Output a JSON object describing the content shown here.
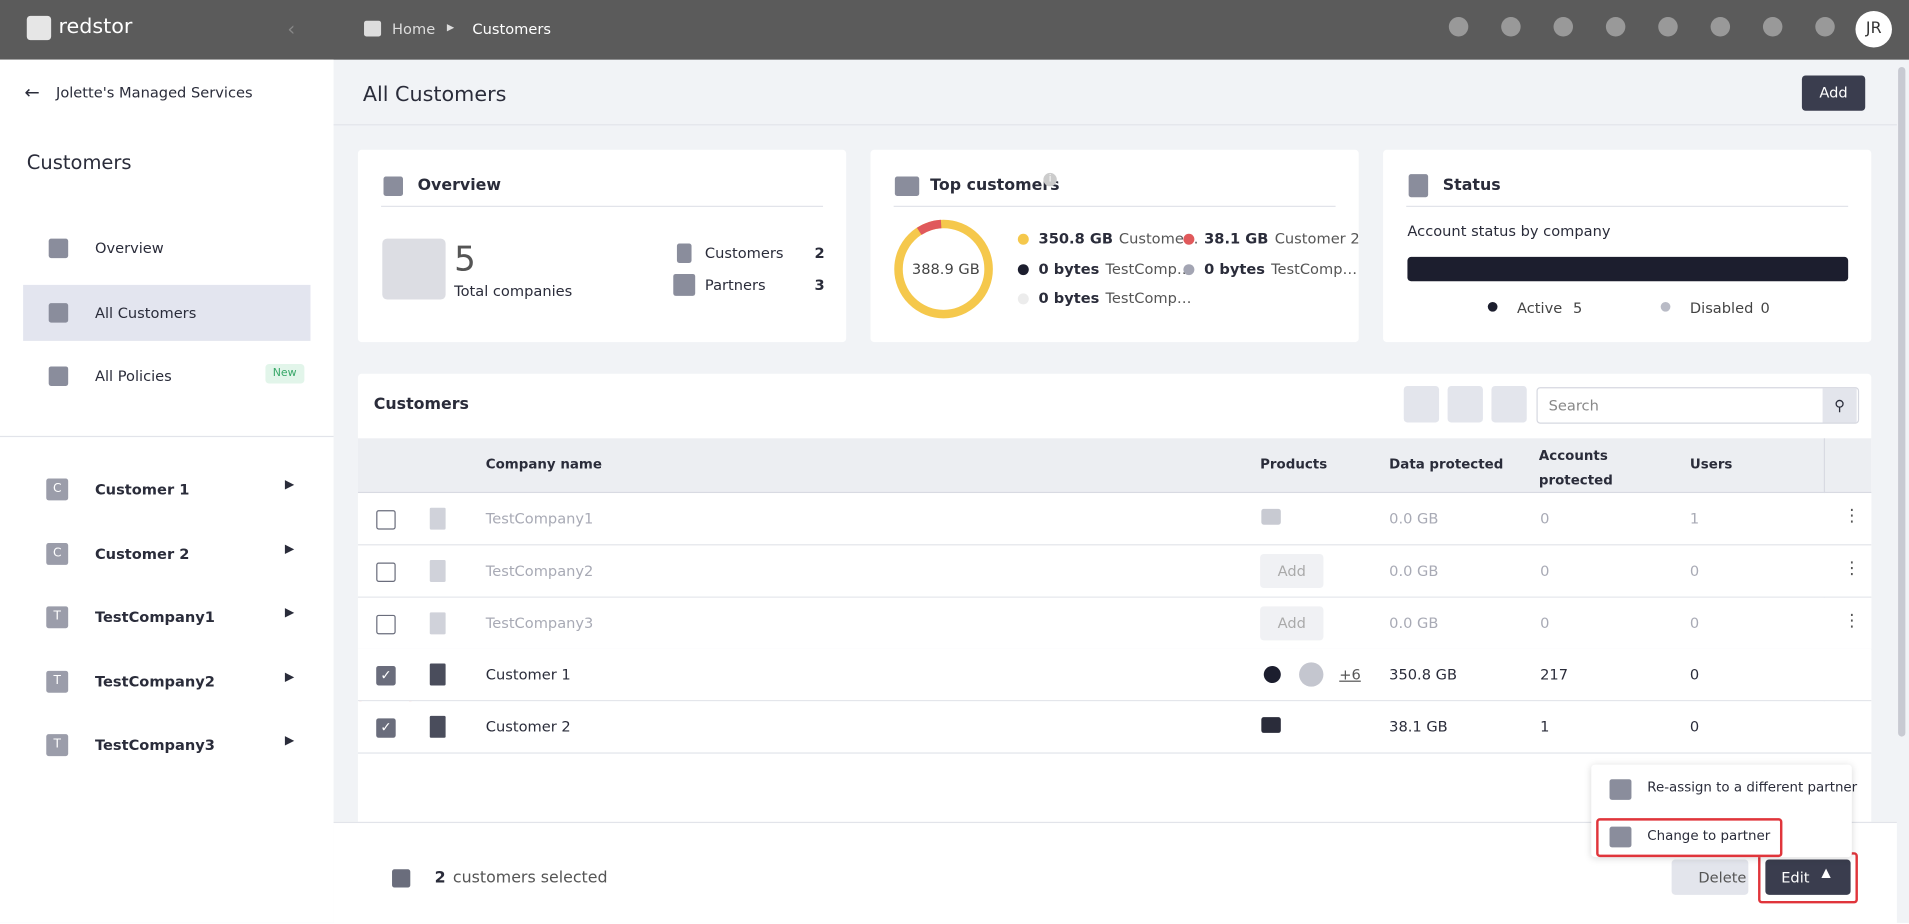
{
  "topbar": {
    "brand": "redstor",
    "breadcrumb": [
      "Home",
      "Customers"
    ],
    "avatar": "JR"
  },
  "sidebar": {
    "back": "Jolette's Managed Services",
    "title": "Customers",
    "nav": [
      {
        "label": "Overview"
      },
      {
        "label": "All Customers",
        "active": true
      },
      {
        "label": "All Policies",
        "badge": "New"
      }
    ],
    "companies": [
      {
        "initial": "C",
        "label": "Customer 1"
      },
      {
        "initial": "C",
        "label": "Customer 2"
      },
      {
        "initial": "T",
        "label": "TestCompany1"
      },
      {
        "initial": "T",
        "label": "TestCompany2"
      },
      {
        "initial": "T",
        "label": "TestCompany3"
      }
    ]
  },
  "header": {
    "title": "All Customers",
    "add": "Add"
  },
  "overview": {
    "title": "Overview",
    "total": 5,
    "total_label": "Total companies",
    "rows": [
      {
        "label": "Customers",
        "value": 2
      },
      {
        "label": "Partners",
        "value": 3
      }
    ]
  },
  "top_customers": {
    "title": "Top customers",
    "center": "388.9 GB",
    "legend": [
      {
        "value": "350.8 GB",
        "name": "Custome…",
        "color": "#f5c84c"
      },
      {
        "value": "38.1 GB",
        "name": "Customer 2",
        "color": "#e0595b"
      },
      {
        "value": "0 bytes",
        "name": "TestComp…",
        "color": "#1c1e2e"
      },
      {
        "value": "0 bytes",
        "name": "TestComp…",
        "color": "#a3a5b3"
      },
      {
        "value": "0 bytes",
        "name": "TestComp…",
        "color": "#ececec"
      }
    ]
  },
  "status": {
    "title": "Status",
    "subtitle": "Account status by company",
    "legend": [
      {
        "label": "Active",
        "value": 5,
        "color": "#1c1e2e"
      },
      {
        "label": "Disabled",
        "value": 0,
        "color": "#b9bbc6"
      }
    ]
  },
  "table": {
    "title": "Customers",
    "search": "Search",
    "columns": [
      "Company name",
      "Products",
      "Data protected",
      "Accounts protected",
      "Users"
    ],
    "rows": [
      {
        "name": "TestCompany1",
        "data": "0.0 GB",
        "accounts": 0,
        "users": 1,
        "disabled": true
      },
      {
        "name": "TestCompany2",
        "products": "Add",
        "data": "0.0 GB",
        "accounts": 0,
        "users": 0,
        "disabled": true
      },
      {
        "name": "TestCompany3",
        "products": "Add",
        "data": "0.0 GB",
        "accounts": 0,
        "users": 0,
        "disabled": true
      },
      {
        "name": "Customer 1",
        "products": "+6",
        "data": "350.8 GB",
        "accounts": 217,
        "users": 0,
        "checked": true
      },
      {
        "name": "Customer 2",
        "data": "38.1 GB",
        "accounts": 1,
        "users": 0,
        "checked": true
      }
    ]
  },
  "footer": {
    "count": 2,
    "selected": "customers selected",
    "delete": "Delete",
    "edit": "Edit",
    "menu": [
      "Re-assign to a different partner",
      "Change to partner"
    ]
  }
}
